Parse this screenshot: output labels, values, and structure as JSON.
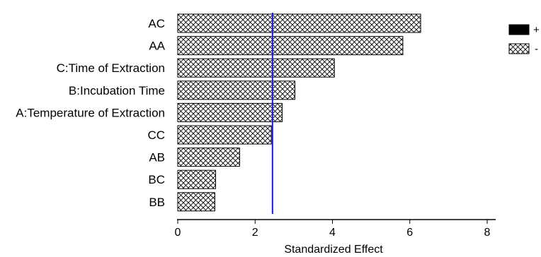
{
  "chart_data": {
    "type": "bar",
    "orientation": "horizontal",
    "categories": [
      "AC",
      "AA",
      "C:Time of Extraction",
      "B:Incubation Time",
      "A:Temperature of Extraction",
      "CC",
      "AB",
      "BC",
      "BB"
    ],
    "values": [
      6.28,
      5.82,
      4.05,
      3.03,
      2.7,
      2.42,
      1.6,
      0.98,
      0.96
    ],
    "signs": [
      "-",
      "-",
      "-",
      "-",
      "-",
      "-",
      "-",
      "-",
      "-"
    ],
    "xlabel": "Standardized Effect",
    "ylabel": "",
    "xlim": [
      0,
      8
    ],
    "xticks": [
      "0",
      "2",
      "4",
      "6",
      "8"
    ],
    "reference_line": 2.45,
    "reference_line_color": "#1a1adc",
    "legend": [
      {
        "label": "+",
        "style": "solid"
      },
      {
        "label": "-",
        "style": "crosshatch"
      }
    ],
    "legend_position": "top-right",
    "grid": false
  }
}
